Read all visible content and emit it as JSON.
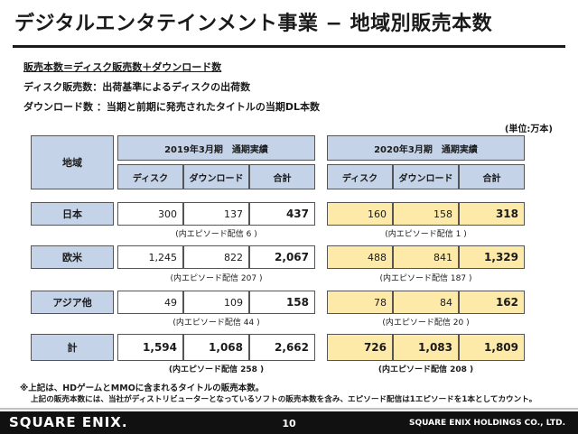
{
  "title": "デジタルエンタテインメント事業 − 地域別販売本数",
  "definitions": {
    "line1": "販売本数＝ディスク販売数＋ダウンロード数",
    "line2": "ディスク販売数：出荷基準によるディスクの出荷数",
    "line3": "ダウンロード数 ：当期と前期に発売されたタイトルの当期DL本数"
  },
  "unit": "(単位:万本)",
  "headers": {
    "region": "地域",
    "fy2019": "2019年3月期　通期実績",
    "fy2020": "2020年3月期　通期実績",
    "disc": "ディスク",
    "download": "ダウンロード",
    "total": "合計"
  },
  "rows": [
    {
      "region": "日本",
      "fy2019": {
        "disc": "300",
        "download": "137",
        "total": "437",
        "note": "(内エピソード配信 6 )"
      },
      "fy2020": {
        "disc": "160",
        "download": "158",
        "total": "318",
        "note": "(内エピソード配信 1 )"
      }
    },
    {
      "region": "欧米",
      "fy2019": {
        "disc": "1,245",
        "download": "822",
        "total": "2,067",
        "note": "(内エピソード配信 207 )"
      },
      "fy2020": {
        "disc": "488",
        "download": "841",
        "total": "1,329",
        "note": "(内エピソード配信 187 )"
      }
    },
    {
      "region": "アジア他",
      "fy2019": {
        "disc": "49",
        "download": "109",
        "total": "158",
        "note": "(内エピソード配信 44 )"
      },
      "fy2020": {
        "disc": "78",
        "download": "84",
        "total": "162",
        "note": "(内エピソード配信 20 )"
      }
    },
    {
      "region": "計",
      "fy2019": {
        "disc": "1,594",
        "download": "1,068",
        "total": "2,662",
        "note": "(内エピソード配信 258 )"
      },
      "fy2020": {
        "disc": "726",
        "download": "1,083",
        "total": "1,809",
        "note": "(内エピソード配信 208 )"
      }
    }
  ],
  "footnotes": {
    "line1": "※上記は、HDゲームとMMOに含まれるタイトルの販売本数。",
    "line2": "上記の販売本数には、当社がディストリビューターとなっているソフトの販売本数を含み、エピソード配信は1エピソードを1本としてカウント。"
  },
  "footer": {
    "logo": "SQUARE ENIX.",
    "page": "10",
    "company": "SQUARE ENIX HOLDINGS CO., LTD."
  },
  "colors": {
    "header_blue": "#c5d3e8",
    "highlight_yellow": "#fde9a8",
    "footer_black": "#111111"
  }
}
